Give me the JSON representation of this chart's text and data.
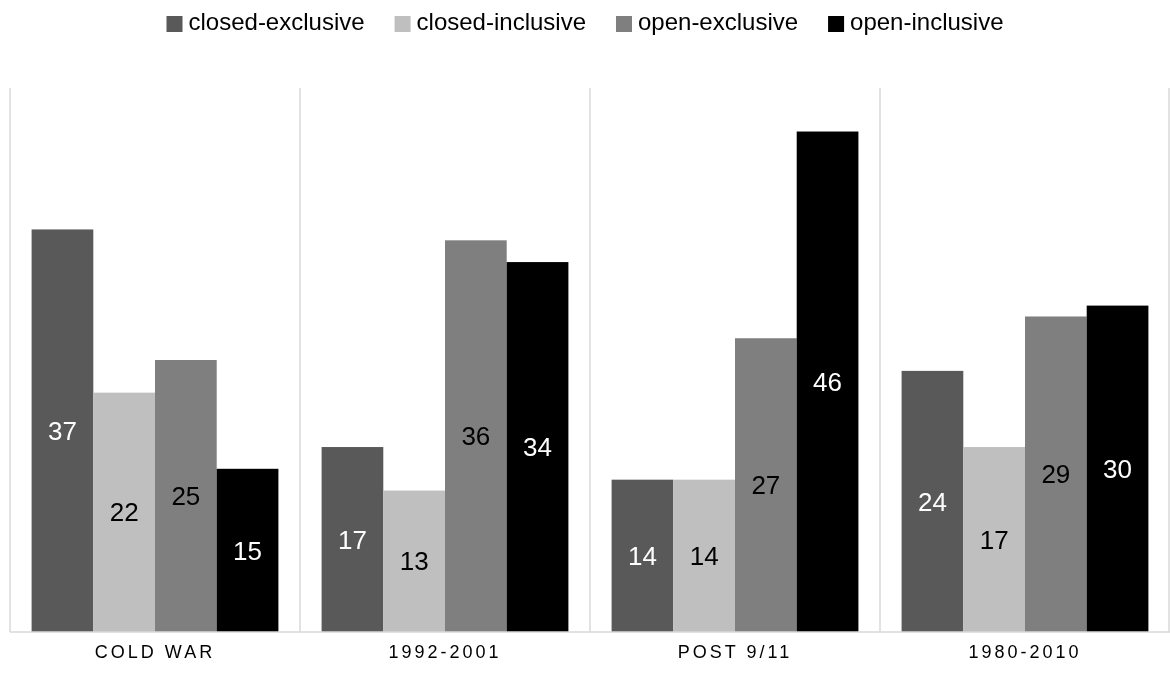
{
  "chart_data": {
    "type": "bar",
    "categories": [
      "COLD WAR",
      "1992-2001",
      "POST 9/11",
      "1980-2010"
    ],
    "series": [
      {
        "name": "closed-exclusive",
        "color": "#595959",
        "values": [
          37,
          17,
          14,
          24
        ]
      },
      {
        "name": "closed-inclusive",
        "color": "#bfbfbf",
        "values": [
          22,
          13,
          14,
          17
        ]
      },
      {
        "name": "open-exclusive",
        "color": "#7f7f7f",
        "values": [
          25,
          36,
          27,
          29
        ]
      },
      {
        "name": "open-inclusive",
        "color": "#000000",
        "values": [
          15,
          34,
          46,
          30
        ]
      }
    ],
    "ylim": [
      0,
      50
    ],
    "tick_labels": "x",
    "data_labels": true,
    "grid": "x",
    "legend": "top"
  }
}
